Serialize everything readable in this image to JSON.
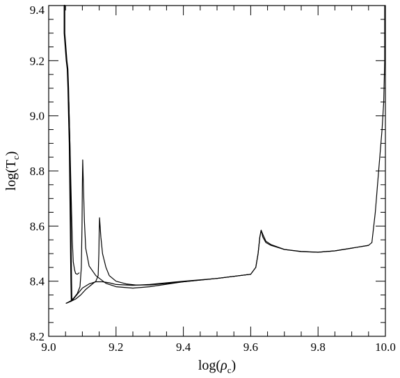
{
  "chart_data": {
    "type": "line",
    "title": "",
    "xlabel": "log(ρc)",
    "ylabel": "log(Tc)",
    "xlabel_parts": {
      "main": "log(",
      "sym": "ρ",
      "sub": "c",
      "close": ")"
    },
    "ylabel_parts": {
      "main": "log(T",
      "sub": "c",
      "close": ")"
    },
    "xlim": [
      9.0,
      10.0
    ],
    "ylim": [
      8.2,
      9.4
    ],
    "x_ticks": [
      "9.0",
      "9.2",
      "9.4",
      "9.6",
      "9.8",
      "10.0"
    ],
    "y_ticks": [
      "8.2",
      "8.4",
      "8.6",
      "8.8",
      "9.0",
      "9.2",
      "9.4"
    ],
    "grid": false,
    "legend": "none",
    "series": [
      {
        "width": 2.2,
        "points": [
          [
            9.047,
            9.4
          ],
          [
            9.047,
            9.3
          ],
          [
            9.05,
            9.25
          ],
          [
            9.053,
            9.2
          ],
          [
            9.056,
            9.17
          ],
          [
            9.058,
            9.1
          ],
          [
            9.06,
            9.0
          ],
          [
            9.062,
            8.9
          ],
          [
            9.063,
            8.8
          ],
          [
            9.064,
            8.7
          ],
          [
            9.065,
            8.6
          ],
          [
            9.066,
            8.5
          ],
          [
            9.067,
            8.4
          ],
          [
            9.068,
            8.33
          ]
        ]
      },
      {
        "width": 1.2,
        "points": [
          [
            9.052,
            8.32
          ],
          [
            9.07,
            8.33
          ],
          [
            9.08,
            8.345
          ],
          [
            9.09,
            8.36
          ],
          [
            9.1,
            8.375
          ],
          [
            9.12,
            8.39
          ],
          [
            9.14,
            8.398
          ],
          [
            9.16,
            8.398
          ],
          [
            9.18,
            8.394
          ],
          [
            9.2,
            8.388
          ],
          [
            9.25,
            8.385
          ],
          [
            9.3,
            8.388
          ],
          [
            9.4,
            8.4
          ],
          [
            9.5,
            8.41
          ],
          [
            9.6,
            8.425
          ],
          [
            9.615,
            8.45
          ],
          [
            9.622,
            8.5
          ],
          [
            9.627,
            8.56
          ],
          [
            9.631,
            8.585
          ],
          [
            9.636,
            8.56
          ],
          [
            9.645,
            8.54
          ],
          [
            9.66,
            8.53
          ],
          [
            9.7,
            8.515
          ],
          [
            9.75,
            8.508
          ],
          [
            9.8,
            8.505
          ],
          [
            9.85,
            8.51
          ],
          [
            9.9,
            8.52
          ],
          [
            9.95,
            8.53
          ],
          [
            9.96,
            8.54
          ],
          [
            9.97,
            8.65
          ],
          [
            9.98,
            8.8
          ],
          [
            9.99,
            8.95
          ],
          [
            9.995,
            9.05
          ],
          [
            9.998,
            9.2
          ],
          [
            9.998,
            9.4
          ]
        ]
      },
      {
        "width": 1.2,
        "points": [
          [
            9.06,
            9.05
          ],
          [
            9.062,
            8.95
          ],
          [
            9.064,
            8.85
          ],
          [
            9.066,
            8.75
          ],
          [
            9.068,
            8.65
          ],
          [
            9.07,
            8.55
          ],
          [
            9.073,
            8.47
          ],
          [
            9.077,
            8.44
          ],
          [
            9.08,
            8.428
          ],
          [
            9.085,
            8.425
          ],
          [
            9.09,
            8.43
          ]
        ]
      },
      {
        "width": 1.2,
        "points": [
          [
            9.052,
            8.32
          ],
          [
            9.065,
            8.326
          ],
          [
            9.08,
            8.335
          ],
          [
            9.095,
            8.35
          ],
          [
            9.11,
            8.37
          ],
          [
            9.125,
            8.385
          ],
          [
            9.14,
            8.4
          ],
          [
            9.147,
            8.42
          ],
          [
            9.149,
            8.5
          ],
          [
            9.15,
            8.58
          ],
          [
            9.151,
            8.63
          ],
          [
            9.155,
            8.56
          ],
          [
            9.16,
            8.5
          ],
          [
            9.17,
            8.45
          ],
          [
            9.18,
            8.42
          ],
          [
            9.2,
            8.4
          ],
          [
            9.23,
            8.39
          ],
          [
            9.26,
            8.386
          ],
          [
            9.3,
            8.386
          ],
          [
            9.4,
            8.398
          ],
          [
            9.5,
            8.41
          ],
          [
            9.6,
            8.425
          ],
          [
            9.615,
            8.45
          ],
          [
            9.622,
            8.5
          ],
          [
            9.627,
            8.56
          ],
          [
            9.631,
            8.585
          ],
          [
            9.636,
            8.57
          ],
          [
            9.645,
            8.545
          ],
          [
            9.66,
            8.533
          ],
          [
            9.7,
            8.515
          ],
          [
            9.75,
            8.507
          ],
          [
            9.8,
            8.505
          ],
          [
            9.85,
            8.51
          ],
          [
            9.9,
            8.52
          ],
          [
            9.95,
            8.53
          ]
        ]
      },
      {
        "width": 1.2,
        "points": [
          [
            9.052,
            8.32
          ],
          [
            9.065,
            8.328
          ],
          [
            9.075,
            8.34
          ],
          [
            9.085,
            8.355
          ],
          [
            9.093,
            8.38
          ],
          [
            9.097,
            8.45
          ],
          [
            9.099,
            8.6
          ],
          [
            9.1,
            8.75
          ],
          [
            9.101,
            8.84
          ],
          [
            9.103,
            8.75
          ],
          [
            9.106,
            8.62
          ],
          [
            9.11,
            8.52
          ],
          [
            9.12,
            8.455
          ],
          [
            9.14,
            8.42
          ],
          [
            9.17,
            8.392
          ],
          [
            9.2,
            8.38
          ],
          [
            9.25,
            8.375
          ],
          [
            9.3,
            8.38
          ],
          [
            9.4,
            8.398
          ],
          [
            9.5,
            8.41
          ],
          [
            9.6,
            8.425
          ]
        ]
      }
    ]
  }
}
